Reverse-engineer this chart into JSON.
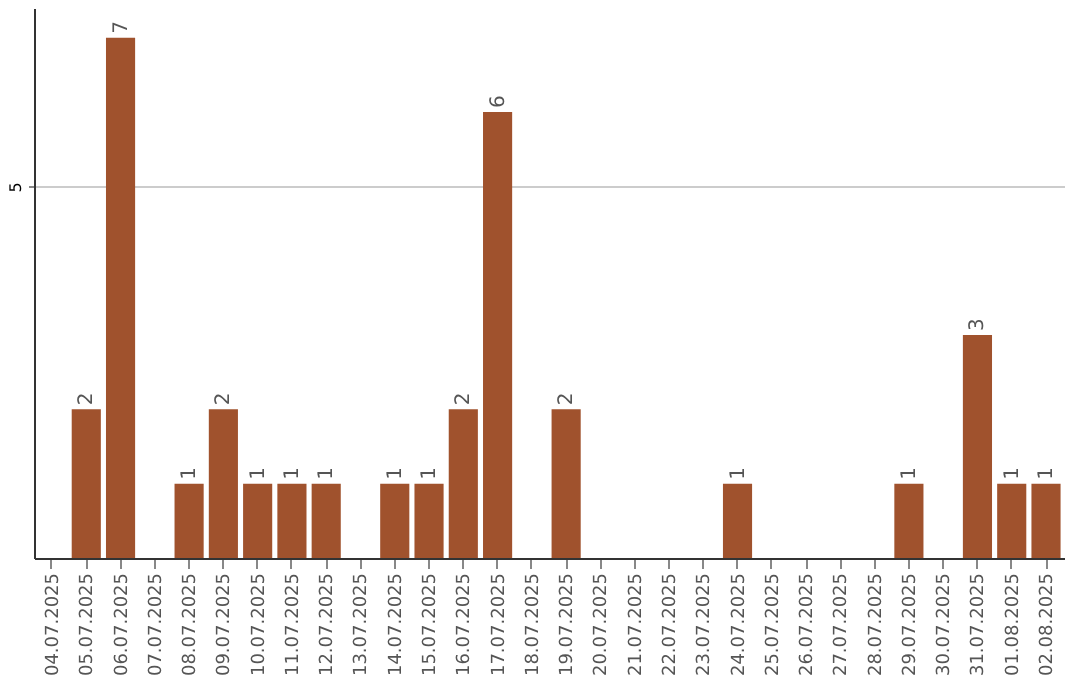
{
  "chart_data": {
    "type": "bar",
    "categories": [
      "04.07.2025",
      "05.07.2025",
      "06.07.2025",
      "07.07.2025",
      "08.07.2025",
      "09.07.2025",
      "10.07.2025",
      "11.07.2025",
      "12.07.2025",
      "13.07.2025",
      "14.07.2025",
      "15.07.2025",
      "16.07.2025",
      "17.07.2025",
      "18.07.2025",
      "19.07.2025",
      "20.07.2025",
      "21.07.2025",
      "22.07.2025",
      "23.07.2025",
      "24.07.2025",
      "25.07.2025",
      "26.07.2025",
      "27.07.2025",
      "28.07.2025",
      "29.07.2025",
      "30.07.2025",
      "31.07.2025",
      "01.08.2025",
      "02.08.2025"
    ],
    "values": [
      0,
      2,
      7,
      0,
      1,
      2,
      1,
      1,
      1,
      0,
      1,
      1,
      2,
      6,
      0,
      2,
      0,
      0,
      0,
      0,
      1,
      0,
      0,
      0,
      0,
      1,
      0,
      3,
      1,
      1
    ],
    "value_labels": [
      null,
      "2",
      "7",
      null,
      "1",
      "2",
      "1",
      "1",
      "1",
      null,
      "1",
      "1",
      "2",
      "6",
      null,
      "2",
      null,
      null,
      null,
      null,
      "1",
      null,
      null,
      null,
      null,
      "1",
      null,
      "3",
      "1",
      "1"
    ],
    "color": "#a0522d",
    "ylim": [
      0,
      7.4
    ],
    "yticks": [
      5
    ],
    "grid": "y"
  }
}
